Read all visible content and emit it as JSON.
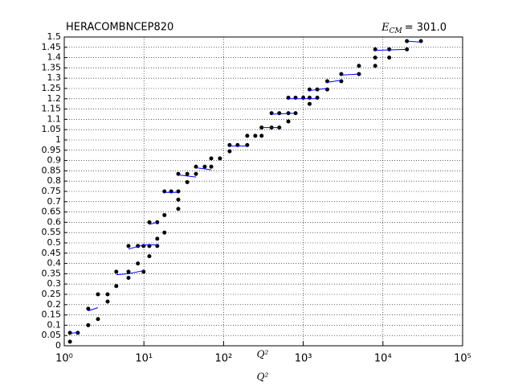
{
  "chart_data": {
    "type": "scatter",
    "title": "HERACOMBNCEP820",
    "energy_label": {
      "symbol": "E",
      "subscript": "CM",
      "text": "= 301.0"
    },
    "x_label": "Q²",
    "log_x": true,
    "grid": true,
    "xlim": [
      1,
      100000
    ],
    "xticks": [
      {
        "value": 1,
        "label": "10⁰"
      },
      {
        "value": 10,
        "label": "10¹"
      },
      {
        "value": 100,
        "label": "10²"
      },
      {
        "value": 1000,
        "label": "10³"
      },
      {
        "value": 10000,
        "label": "10⁴"
      },
      {
        "value": 100000,
        "label": "10⁵"
      }
    ],
    "ylim": [
      0,
      1.5
    ],
    "yticks": [
      0,
      0.05,
      0.1,
      0.15,
      0.2,
      0.25,
      0.3,
      0.35,
      0.4,
      0.45,
      0.5,
      0.55,
      0.6,
      0.65,
      0.7,
      0.75,
      0.8,
      0.85,
      0.9,
      0.95,
      1,
      1.05,
      1.1,
      1.15,
      1.2,
      1.25,
      1.3,
      1.35,
      1.4,
      1.45,
      1.5
    ],
    "series": [
      {
        "mode": "markers",
        "color": "#000000",
        "x": [
          1.18,
          1.18,
          1.48,
          2.0,
          2.0,
          2.65,
          2.65,
          3.5,
          3.5,
          4.5,
          4.5,
          6.4,
          6.4,
          6.4,
          8.4,
          8.4,
          9.9,
          9.9,
          11.7,
          11.7,
          11.7,
          14.7,
          14.7,
          14.7,
          18.1,
          18.1,
          18.1,
          22,
          27,
          27,
          27,
          27,
          35,
          35,
          45,
          45,
          58,
          70,
          70,
          90,
          119,
          119,
          150,
          198,
          198,
          250,
          300,
          300,
          400,
          500,
          400,
          500,
          650,
          650,
          800,
          650,
          800,
          1000,
          1200,
          1200,
          1200,
          1500,
          1500,
          2000,
          2000,
          3000,
          3000,
          5000,
          5000,
          8000,
          8000,
          8000,
          12000,
          12000,
          20000,
          20000,
          30000
        ],
        "values": [
          0.02,
          0.063,
          0.063,
          0.1,
          0.18,
          0.13,
          0.25,
          0.215,
          0.25,
          0.29,
          0.36,
          0.36,
          0.33,
          0.485,
          0.4,
          0.485,
          0.36,
          0.485,
          0.435,
          0.485,
          0.6,
          0.485,
          0.52,
          0.6,
          0.55,
          0.635,
          0.75,
          0.75,
          0.75,
          0.71,
          0.665,
          0.835,
          0.795,
          0.835,
          0.835,
          0.87,
          0.87,
          0.87,
          0.91,
          0.91,
          0.945,
          0.975,
          0.975,
          0.975,
          1.02,
          1.02,
          1.02,
          1.06,
          1.06,
          1.06,
          1.13,
          1.13,
          1.13,
          1.09,
          1.13,
          1.205,
          1.205,
          1.205,
          1.205,
          1.175,
          1.245,
          1.245,
          1.205,
          1.245,
          1.285,
          1.285,
          1.32,
          1.32,
          1.36,
          1.36,
          1.4,
          1.44,
          1.4,
          1.44,
          1.44,
          1.48,
          1.48
        ]
      },
      {
        "mode": "lines",
        "color": "#0000ff",
        "x": [
          1.18,
          1.48,
          null,
          2.0,
          2.65,
          null,
          4.5,
          6.4,
          9.9,
          null,
          6.4,
          9.9,
          14.7,
          null,
          11.7,
          14.7,
          null,
          18.1,
          27,
          null,
          27,
          45,
          null,
          45,
          70,
          null,
          119,
          198,
          null,
          300,
          500,
          null,
          400,
          800,
          null,
          650,
          1500,
          null,
          1200,
          2000,
          null,
          2000,
          3000,
          null,
          3000,
          5000,
          null,
          8000,
          20000,
          null,
          20000,
          30000
        ],
        "values": [
          0.06,
          0.065,
          null,
          0.17,
          0.185,
          null,
          0.345,
          0.35,
          0.365,
          null,
          0.47,
          0.49,
          0.49,
          null,
          0.59,
          0.6,
          null,
          0.745,
          0.745,
          null,
          0.83,
          0.82,
          null,
          0.865,
          0.855,
          null,
          0.97,
          0.97,
          null,
          1.06,
          1.06,
          null,
          1.125,
          1.13,
          null,
          1.2,
          1.2,
          null,
          1.24,
          1.25,
          null,
          1.28,
          1.29,
          null,
          1.315,
          1.32,
          null,
          1.435,
          1.44,
          null,
          1.48,
          1.475
        ]
      }
    ]
  }
}
